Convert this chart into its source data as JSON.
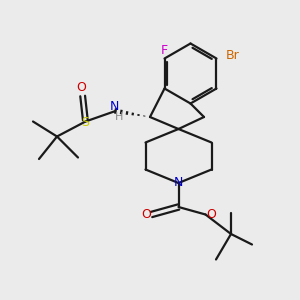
{
  "bg_color": "#ebebeb",
  "bond_color": "#1a1a1a",
  "F_color": "#cc00cc",
  "Br_color": "#cc6600",
  "N_color": "#0000cc",
  "O_color": "#cc0000",
  "S_color": "#cccc00",
  "H_color": "#888888",
  "lw": 1.6,
  "xlim": [
    0,
    10
  ],
  "ylim": [
    0,
    10
  ]
}
